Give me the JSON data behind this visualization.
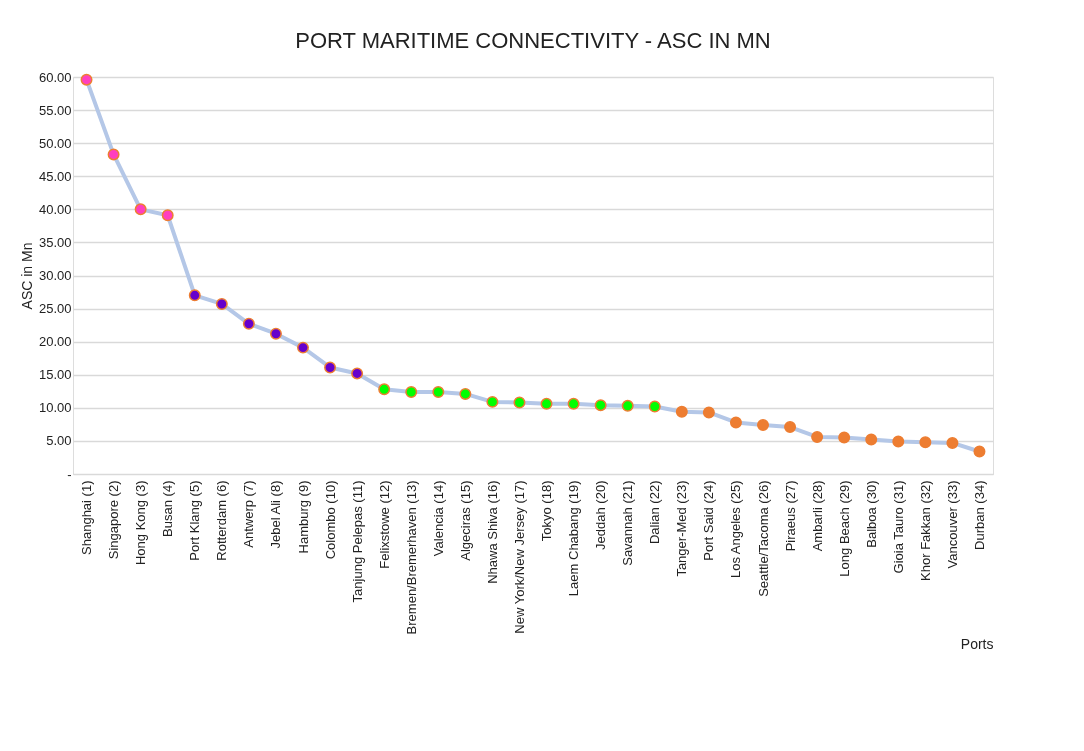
{
  "chart_data": {
    "type": "line",
    "title": "PORT MARITIME CONNECTIVITY - ASC IN MN",
    "xlabel": "Ports",
    "ylabel": "ASC in Mn",
    "categories": [
      "Shanghai (1)",
      "Singapore (2)",
      "Hong Kong (3)",
      "Busan (4)",
      "Port Klang (5)",
      "Rotterdam (6)",
      "Antwerp (7)",
      "Jebel Ali (8)",
      "Hamburg (9)",
      "Colombo (10)",
      "Tanjung Pelepas (11)",
      "Felixstowe (12)",
      "Bremen/Bremerhaven (13)",
      "Valencia (14)",
      "Algeciras (15)",
      "Nhawa Shiva (16)",
      "New York/New Jersey (17)",
      "Tokyo (18)",
      "Laem Chabang (19)",
      "Jeddah (20)",
      "Savannah (21)",
      "Dalian (22)",
      "Tanger-Med (23)",
      "Port Said (24)",
      "Los Angeles (25)",
      "Seattle/Tacoma (26)",
      "Piraeus (27)",
      "Ambarli (28)",
      "Long Beach (29)",
      "Balboa (30)",
      "Gioia Tauro (31)",
      "Khor Fakkan (32)",
      "Vancouver (33)",
      "Durban (34)"
    ],
    "series": [
      {
        "color": "#b4c7e7",
        "values": [
          59.6,
          48.3,
          40.0,
          39.1,
          27.0,
          25.7,
          22.7,
          21.2,
          19.1,
          16.1,
          15.2,
          12.8,
          12.4,
          12.4,
          12.1,
          10.9,
          10.8,
          10.6,
          10.6,
          10.4,
          10.3,
          10.2,
          9.4,
          9.3,
          7.8,
          7.4,
          7.1,
          5.6,
          5.5,
          5.2,
          4.9,
          4.8,
          4.7,
          3.4
        ],
        "colors": [
          "#ff3fbf",
          "#ff3fbf",
          "#ff3fbf",
          "#ff3fbf",
          "#6600cc",
          "#6600cc",
          "#6600cc",
          "#6600cc",
          "#6600cc",
          "#6600cc",
          "#6600cc",
          "#00ff00",
          "#00ff00",
          "#00ff00",
          "#00ff00",
          "#00ff00",
          "#00ff00",
          "#00ff00",
          "#00ff00",
          "#00ff00",
          "#00ff00",
          "#00ff00",
          "#ed7d31",
          "#ed7d31",
          "#ed7d31",
          "#ed7d31",
          "#ed7d31",
          "#ed7d31",
          "#ed7d31",
          "#ed7d31",
          "#ed7d31",
          "#ed7d31",
          "#ed7d31",
          "#ed7d31"
        ]
      }
    ],
    "ylim": [
      0,
      60
    ],
    "yticks": [
      {
        "value": 0,
        "label": "-"
      },
      {
        "value": 5,
        "label": "5.00"
      },
      {
        "value": 10,
        "label": "10.00"
      },
      {
        "value": 15,
        "label": "15.00"
      },
      {
        "value": 20,
        "label": "20.00"
      },
      {
        "value": 25,
        "label": "25.00"
      },
      {
        "value": 30,
        "label": "30.00"
      },
      {
        "value": 35,
        "label": "35.00"
      },
      {
        "value": 40,
        "label": "40.00"
      },
      {
        "value": 45,
        "label": "45.00"
      },
      {
        "value": 50,
        "label": "50.00"
      },
      {
        "value": 55,
        "label": "55.00"
      },
      {
        "value": 60,
        "label": "60.00"
      }
    ],
    "grid": "y",
    "marker": "circle",
    "line_style": "solid"
  }
}
